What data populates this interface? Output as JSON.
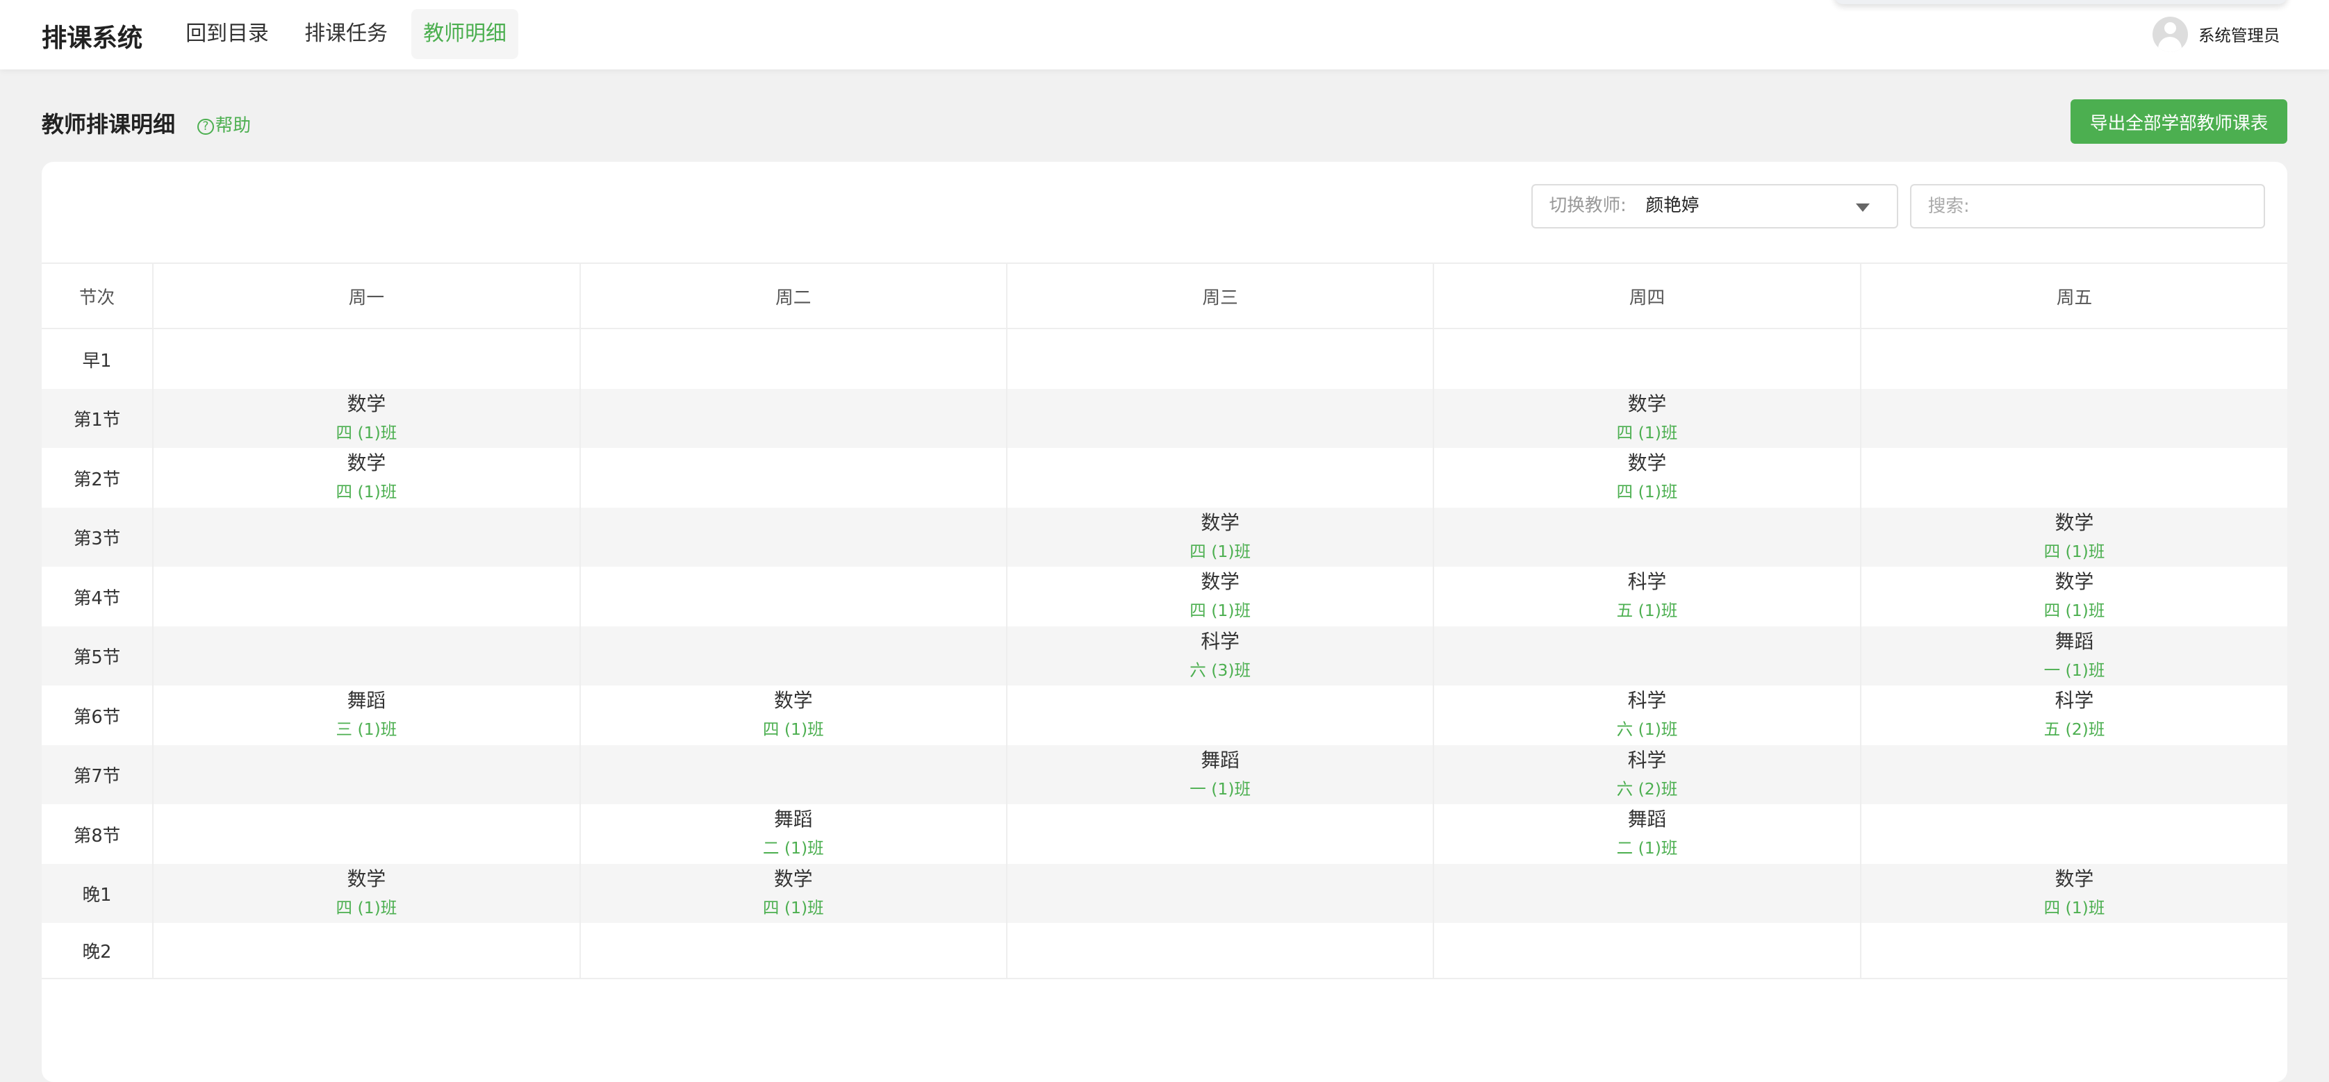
{
  "header": {
    "brand": "排课系统",
    "nav": [
      {
        "label": "回到目录"
      },
      {
        "label": "排课任务"
      },
      {
        "label": "教师明细",
        "active": true
      }
    ],
    "user": "系统管理员",
    "avatar_icon": "user-avatar-icon"
  },
  "page": {
    "title": "教师排课明细",
    "help": "帮助",
    "export_label": "导出全部学部教师课表"
  },
  "filters": {
    "teacher_label": "切换教师:",
    "teacher_value": "颜艳婷",
    "search_placeholder": "搜索:"
  },
  "colors": {
    "accent": "#4caf50",
    "stripe": "#f5f5f5"
  },
  "timetable": {
    "period_header": "节次",
    "days": [
      "周一",
      "周二",
      "周三",
      "周四",
      "周五"
    ],
    "rows": [
      {
        "period": "早1",
        "cells": [
          null,
          null,
          null,
          null,
          null
        ]
      },
      {
        "period": "第1节",
        "cells": [
          {
            "subject": "数学",
            "class": "四 (1)班"
          },
          null,
          null,
          {
            "subject": "数学",
            "class": "四 (1)班"
          },
          null
        ]
      },
      {
        "period": "第2节",
        "cells": [
          {
            "subject": "数学",
            "class": "四 (1)班"
          },
          null,
          null,
          {
            "subject": "数学",
            "class": "四 (1)班"
          },
          null
        ]
      },
      {
        "period": "第3节",
        "cells": [
          null,
          null,
          {
            "subject": "数学",
            "class": "四 (1)班"
          },
          null,
          {
            "subject": "数学",
            "class": "四 (1)班"
          }
        ]
      },
      {
        "period": "第4节",
        "cells": [
          null,
          null,
          {
            "subject": "数学",
            "class": "四 (1)班"
          },
          {
            "subject": "科学",
            "class": "五 (1)班"
          },
          {
            "subject": "数学",
            "class": "四 (1)班"
          }
        ]
      },
      {
        "period": "第5节",
        "cells": [
          null,
          null,
          {
            "subject": "科学",
            "class": "六 (3)班"
          },
          null,
          {
            "subject": "舞蹈",
            "class": "一 (1)班"
          }
        ]
      },
      {
        "period": "第6节",
        "cells": [
          {
            "subject": "舞蹈",
            "class": "三 (1)班"
          },
          {
            "subject": "数学",
            "class": "四 (1)班"
          },
          null,
          {
            "subject": "科学",
            "class": "六 (1)班"
          },
          {
            "subject": "科学",
            "class": "五 (2)班"
          }
        ]
      },
      {
        "period": "第7节",
        "cells": [
          null,
          null,
          {
            "subject": "舞蹈",
            "class": "一 (1)班"
          },
          {
            "subject": "科学",
            "class": "六 (2)班"
          },
          null
        ]
      },
      {
        "period": "第8节",
        "cells": [
          null,
          {
            "subject": "舞蹈",
            "class": "二 (1)班"
          },
          null,
          {
            "subject": "舞蹈",
            "class": "二 (1)班"
          },
          null
        ]
      },
      {
        "period": "晚1",
        "cells": [
          {
            "subject": "数学",
            "class": "四 (1)班"
          },
          {
            "subject": "数学",
            "class": "四 (1)班"
          },
          null,
          null,
          {
            "subject": "数学",
            "class": "四 (1)班"
          }
        ]
      },
      {
        "period": "晚2",
        "cells": [
          null,
          null,
          null,
          null,
          null
        ]
      }
    ]
  }
}
